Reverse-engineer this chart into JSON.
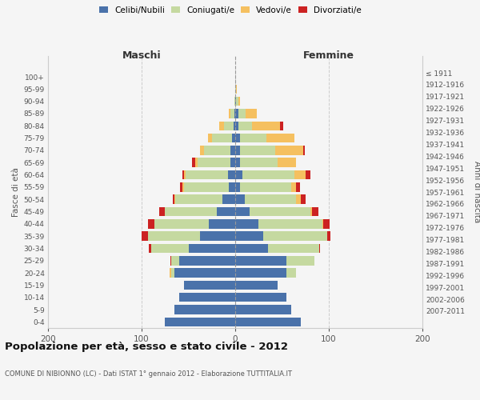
{
  "age_groups": [
    "0-4",
    "5-9",
    "10-14",
    "15-19",
    "20-24",
    "25-29",
    "30-34",
    "35-39",
    "40-44",
    "45-49",
    "50-54",
    "55-59",
    "60-64",
    "65-69",
    "70-74",
    "75-79",
    "80-84",
    "85-89",
    "90-94",
    "95-99",
    "100+"
  ],
  "birth_years": [
    "2007-2011",
    "2002-2006",
    "1997-2001",
    "1992-1996",
    "1987-1991",
    "1982-1986",
    "1977-1981",
    "1972-1976",
    "1967-1971",
    "1962-1966",
    "1957-1961",
    "1952-1956",
    "1947-1951",
    "1942-1946",
    "1937-1941",
    "1932-1936",
    "1927-1931",
    "1922-1926",
    "1917-1921",
    "1912-1916",
    "≤ 1911"
  ],
  "maschi": {
    "celibi": [
      75,
      65,
      60,
      55,
      65,
      60,
      50,
      38,
      28,
      20,
      14,
      7,
      8,
      5,
      5,
      3,
      2,
      1,
      0,
      0,
      0
    ],
    "coniugati": [
      0,
      0,
      0,
      0,
      3,
      8,
      40,
      55,
      58,
      55,
      50,
      48,
      45,
      35,
      28,
      22,
      10,
      4,
      1,
      0,
      0
    ],
    "vedovi": [
      0,
      0,
      0,
      0,
      2,
      0,
      0,
      0,
      0,
      0,
      1,
      1,
      2,
      3,
      5,
      4,
      5,
      2,
      0,
      0,
      0
    ],
    "divorziati": [
      0,
      0,
      0,
      0,
      0,
      1,
      2,
      7,
      7,
      6,
      2,
      3,
      1,
      3,
      0,
      0,
      0,
      0,
      0,
      0,
      0
    ]
  },
  "femmine": {
    "nubili": [
      70,
      60,
      55,
      45,
      55,
      55,
      35,
      30,
      25,
      15,
      10,
      5,
      8,
      5,
      5,
      5,
      3,
      3,
      1,
      0,
      0
    ],
    "coniugate": [
      0,
      0,
      0,
      0,
      10,
      30,
      55,
      68,
      68,
      65,
      55,
      55,
      55,
      40,
      38,
      28,
      15,
      8,
      2,
      1,
      0
    ],
    "vedove": [
      0,
      0,
      0,
      0,
      0,
      0,
      0,
      0,
      1,
      2,
      5,
      5,
      12,
      20,
      30,
      30,
      30,
      12,
      2,
      1,
      0
    ],
    "divorziate": [
      0,
      0,
      0,
      0,
      0,
      0,
      1,
      4,
      7,
      7,
      5,
      4,
      5,
      0,
      1,
      0,
      3,
      0,
      0,
      0,
      0
    ]
  },
  "colors": {
    "celibi": "#4a72aa",
    "coniugati": "#c5d9a0",
    "vedovi": "#f5c060",
    "divorziati": "#cc2222"
  },
  "xlim": 200,
  "title": "Popolazione per età, sesso e stato civile - 2012",
  "subtitle": "COMUNE DI NIBIONNO (LC) - Dati ISTAT 1° gennaio 2012 - Elaborazione TUTTITALIA.IT",
  "ylabel_left": "Fasce di età",
  "ylabel_right": "Anni di nascita",
  "xlabel_left": "Maschi",
  "xlabel_right": "Femmine",
  "legend_labels": [
    "Celibi/Nubili",
    "Coniugati/e",
    "Vedovi/e",
    "Divorziati/e"
  ],
  "bg_color": "#f5f5f5",
  "bar_height": 0.75,
  "grid_color": "#cccccc"
}
